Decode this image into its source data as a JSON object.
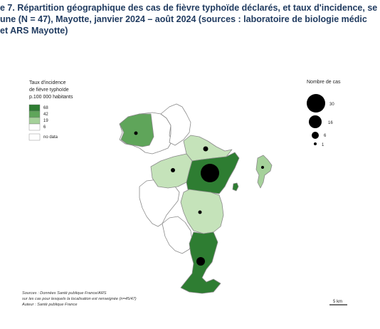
{
  "title": {
    "line1": "e 7. Répartition géographique des cas de fièvre typhoïde déclarés, et taux d'incidence, se",
    "line2": "une (N = 47), Mayotte, janvier 2024 – août 2024 (sources : laboratoire de biologie médic",
    "line3": "et ARS Mayotte)"
  },
  "legend_incidence": {
    "title_lines": [
      "Taux d'incidence",
      "de fièvre typhoïde",
      "p.100 000 habitants"
    ],
    "classes": [
      {
        "label": "68",
        "color": "#2e7d32"
      },
      {
        "label": "42",
        "color": "#5fa55a"
      },
      {
        "label": "19",
        "color": "#a5d19a"
      },
      {
        "label": "6",
        "color": "#ffffff"
      }
    ],
    "no_data_label": "no data"
  },
  "legend_cases": {
    "title": "Nombre de cas",
    "items": [
      {
        "label": "30",
        "value": 30
      },
      {
        "label": "16",
        "value": 16
      },
      {
        "label": "6",
        "value": 6
      },
      {
        "label": "1",
        "value": 1
      }
    ]
  },
  "communes": [
    {
      "id": "nw",
      "class_color": "#5fa55a"
    },
    {
      "id": "north",
      "class_color": "#c5e3ba"
    },
    {
      "id": "west",
      "class_color": "#c5e3ba"
    },
    {
      "id": "center",
      "class_color": "#2e7d32"
    },
    {
      "id": "center-south",
      "class_color": "#c5e3ba"
    },
    {
      "id": "south",
      "class_color": "#2e7d32"
    },
    {
      "id": "petite-terre",
      "class_color": "#a5d19a"
    },
    {
      "id": "islet",
      "class_color": "#2e7d32"
    }
  ],
  "sources": {
    "line1": "Sources : Données Santé publique France/ARS",
    "line2": "sur les cas pour lesquels la localisation est renseignée (n=45/47)",
    "line3": "Auteur : Santé publique France"
  },
  "scale_bar": {
    "label": "5 km"
  }
}
